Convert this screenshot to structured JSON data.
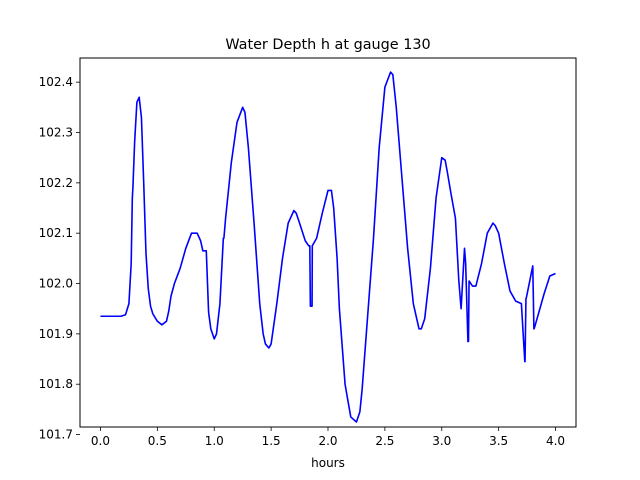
{
  "chart_data": {
    "type": "line",
    "title": "Water Depth h at gauge 130",
    "xlabel": "hours",
    "ylabel": "",
    "xlim": [
      -0.18,
      4.18
    ],
    "ylim": [
      101.715,
      102.448
    ],
    "xticks": [
      0.0,
      0.5,
      1.0,
      1.5,
      2.0,
      2.5,
      3.0,
      3.5,
      4.0
    ],
    "xtick_labels": [
      "0.0",
      "0.5",
      "1.0",
      "1.5",
      "2.0",
      "2.5",
      "3.0",
      "3.5",
      "4.0"
    ],
    "yticks": [
      101.7,
      101.8,
      101.9,
      102.0,
      102.1,
      102.2,
      102.3,
      102.4
    ],
    "ytick_labels": [
      "101.7",
      "101.8",
      "101.9",
      "102.0",
      "102.1",
      "102.2",
      "102.3",
      "102.4"
    ],
    "grid": false,
    "series": [
      {
        "name": "",
        "color": "#0000ff",
        "x": [
          0.0,
          0.1,
          0.18,
          0.22,
          0.25,
          0.27,
          0.28,
          0.285,
          0.3,
          0.32,
          0.34,
          0.36,
          0.38,
          0.4,
          0.42,
          0.44,
          0.46,
          0.5,
          0.54,
          0.58,
          0.6,
          0.62,
          0.65,
          0.7,
          0.75,
          0.8,
          0.85,
          0.88,
          0.9,
          0.93,
          0.95,
          0.952,
          0.97,
          1.0,
          1.02,
          1.05,
          1.08,
          1.085,
          1.1,
          1.15,
          1.2,
          1.25,
          1.27,
          1.3,
          1.35,
          1.4,
          1.43,
          1.45,
          1.48,
          1.5,
          1.55,
          1.6,
          1.65,
          1.7,
          1.72,
          1.75,
          1.8,
          1.83,
          1.84,
          1.845,
          1.86,
          1.862,
          1.9,
          1.95,
          2.0,
          2.03,
          2.05,
          2.08,
          2.1,
          2.15,
          2.2,
          2.25,
          2.28,
          2.3,
          2.35,
          2.4,
          2.45,
          2.5,
          2.55,
          2.57,
          2.6,
          2.65,
          2.7,
          2.75,
          2.8,
          2.82,
          2.85,
          2.9,
          2.95,
          3.0,
          3.03,
          3.05,
          3.08,
          3.12,
          3.15,
          3.152,
          3.17,
          3.2,
          3.21,
          3.23,
          3.235,
          3.24,
          3.27,
          3.3,
          3.35,
          3.4,
          3.45,
          3.47,
          3.5,
          3.55,
          3.6,
          3.65,
          3.7,
          3.73,
          3.732,
          3.74,
          3.742,
          3.76,
          3.8,
          3.81,
          3.812,
          3.85,
          3.9,
          3.95,
          4.0
        ],
        "y": [
          101.935,
          101.935,
          101.935,
          101.938,
          101.96,
          102.04,
          102.17,
          102.19,
          102.28,
          102.36,
          102.37,
          102.33,
          102.2,
          102.06,
          101.99,
          101.955,
          101.94,
          101.925,
          101.918,
          101.925,
          101.945,
          101.975,
          102.0,
          102.03,
          102.07,
          102.1,
          102.1,
          102.085,
          102.065,
          102.065,
          101.945,
          101.94,
          101.91,
          101.89,
          101.9,
          101.96,
          102.09,
          102.09,
          102.13,
          102.24,
          102.32,
          102.35,
          102.34,
          102.27,
          102.12,
          101.96,
          101.9,
          101.88,
          101.872,
          101.88,
          101.96,
          102.05,
          102.12,
          102.145,
          102.14,
          102.12,
          102.085,
          102.075,
          102.075,
          101.955,
          101.955,
          102.075,
          102.09,
          102.14,
          102.185,
          102.185,
          102.15,
          102.05,
          101.95,
          101.8,
          101.735,
          101.725,
          101.745,
          101.79,
          101.94,
          102.09,
          102.27,
          102.39,
          102.42,
          102.415,
          102.35,
          102.21,
          102.07,
          101.96,
          101.91,
          101.91,
          101.93,
          102.03,
          102.17,
          102.25,
          102.245,
          102.22,
          102.18,
          102.13,
          102.005,
          102.0,
          101.95,
          102.07,
          102.04,
          101.885,
          101.885,
          102.005,
          101.995,
          101.995,
          102.04,
          102.1,
          102.12,
          102.115,
          102.1,
          102.04,
          101.985,
          101.965,
          101.96,
          101.845,
          101.845,
          101.97,
          101.97,
          101.99,
          102.035,
          101.91,
          101.91,
          101.94,
          101.98,
          102.015,
          102.02
        ]
      }
    ]
  }
}
